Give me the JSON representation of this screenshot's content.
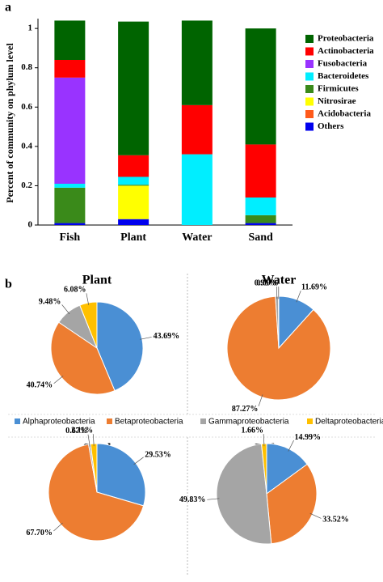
{
  "panels": [
    "a",
    "b"
  ],
  "chart_data": [
    {
      "type": "stacked_bar",
      "y_label": "Percent of community on phylum level",
      "categories": [
        "Fish",
        "Plant",
        "Water",
        "Sand"
      ],
      "ylim": [
        0,
        1.05
      ],
      "yticks": [
        0,
        0.2,
        0.4,
        0.6,
        0.8,
        1
      ],
      "series": [
        {
          "name": "Proteobacteria",
          "color": "#006400",
          "values": [
            0.2,
            0.68,
            0.43,
            0.59
          ]
        },
        {
          "name": "Actinobacteria",
          "color": "#ff0000",
          "values": [
            0.09,
            0.11,
            0.25,
            0.27
          ]
        },
        {
          "name": "Fusobacteria",
          "color": "#9933ff",
          "values": [
            0.54,
            0,
            0,
            0
          ]
        },
        {
          "name": "Bacteroidetes",
          "color": "#00eeff",
          "values": [
            0.02,
            0.04,
            0.36,
            0.09
          ]
        },
        {
          "name": "Firmicutes",
          "color": "#3a8a1a",
          "values": [
            0.18,
            0.005,
            0,
            0.04
          ]
        },
        {
          "name": "Nitrosirae",
          "color": "#ffff00",
          "values": [
            0,
            0.17,
            0,
            0
          ]
        },
        {
          "name": "Acidobacteria",
          "color": "#ff5a1a",
          "values": [
            0,
            0,
            0,
            0
          ]
        },
        {
          "name": "Others",
          "color": "#0000ee",
          "values": [
            0.01,
            0.03,
            0,
            0.01
          ]
        }
      ]
    },
    {
      "type": "pie",
      "title": "Plant",
      "categories": [
        "Alphaproteobacteria",
        "Betaproteobacteria",
        "Gammaproteobacteria",
        "Deltaproteobacteria"
      ],
      "colors": [
        "#4a8fd4",
        "#ed7d31",
        "#a5a5a5",
        "#ffc000"
      ],
      "values": [
        43.69,
        40.74,
        9.48,
        6.08
      ],
      "value_labels": [
        "43.69%",
        "40.74%",
        "9.48%",
        "6.08%"
      ]
    },
    {
      "type": "pie",
      "title": "Water",
      "categories": [
        "Alphaproteobacteria",
        "Betaproteobacteria",
        "Gammaproteobacteria",
        "Deltaproteobacteria"
      ],
      "colors": [
        "#4a8fd4",
        "#ed7d31",
        "#a5a5a5",
        "#ffc000"
      ],
      "values": [
        11.69,
        87.27,
        0.95,
        0.09
      ],
      "value_labels": [
        "11.69%",
        "87.27%",
        "0.95%",
        "0.09%"
      ]
    },
    {
      "type": "pie",
      "title": "Sand",
      "categories": [
        "Alphaproteobacteria",
        "Betaproteobacteria",
        "Gammaproteobacteria",
        "Deltaproteobacteria"
      ],
      "colors": [
        "#4a8fd4",
        "#ed7d31",
        "#a5a5a5",
        "#ffc000"
      ],
      "values": [
        29.53,
        67.7,
        0.67,
        2.11
      ],
      "value_labels": [
        "29.53%",
        "67.70%",
        "0.67%",
        "2.11%"
      ]
    },
    {
      "type": "pie",
      "title": "Fish",
      "categories": [
        "Alphaproteobacteria",
        "Betaproteobacteria",
        "Gammaproteobacteria",
        "Deltaproteobacteria"
      ],
      "colors": [
        "#4a8fd4",
        "#ed7d31",
        "#a5a5a5",
        "#ffc000"
      ],
      "values": [
        14.99,
        33.52,
        49.83,
        1.66
      ],
      "value_labels": [
        "14.99%",
        "33.52%",
        "49.83%",
        "1.66%"
      ]
    }
  ]
}
